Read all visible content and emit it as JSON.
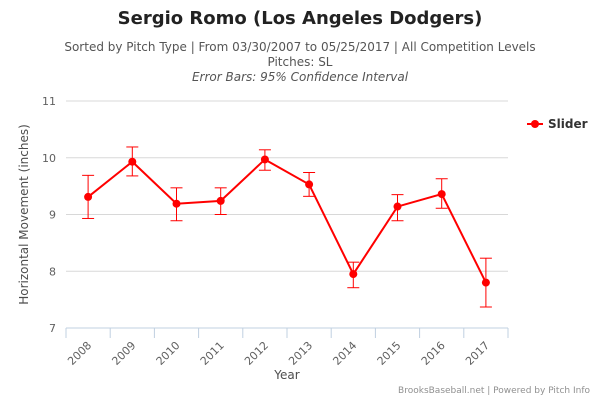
{
  "chart_data": {
    "type": "line",
    "title": "Sergio Romo (Los Angeles Dodgers)",
    "subtitle": [
      "Sorted by Pitch Type | From 03/30/2007 to 05/25/2017 | All Competition Levels",
      "Pitches: SL",
      "Error Bars: 95% Confidence Interval"
    ],
    "xlabel": "Year",
    "ylabel": "Horizontal Movement (inches)",
    "ylim": [
      7,
      11
    ],
    "yticks": [
      "7",
      "8",
      "9",
      "10",
      "11"
    ],
    "categories": [
      "2008",
      "2009",
      "2010",
      "2011",
      "2012",
      "2013",
      "2014",
      "2015",
      "2016",
      "2017"
    ],
    "series": [
      {
        "name": "Slider",
        "color": "#ff0000",
        "values": [
          9.31,
          9.93,
          9.19,
          9.24,
          9.97,
          9.53,
          7.95,
          9.14,
          9.36,
          7.8
        ],
        "error_low": [
          8.93,
          9.68,
          8.89,
          9.0,
          9.78,
          9.32,
          7.71,
          8.89,
          9.11,
          7.37
        ],
        "error_high": [
          9.69,
          10.19,
          9.47,
          9.47,
          10.14,
          9.74,
          8.16,
          9.35,
          9.63,
          8.23
        ]
      }
    ],
    "legend": "right",
    "grid": true
  },
  "credit": "BrooksBaseball.net | Powered by Pitch Info"
}
